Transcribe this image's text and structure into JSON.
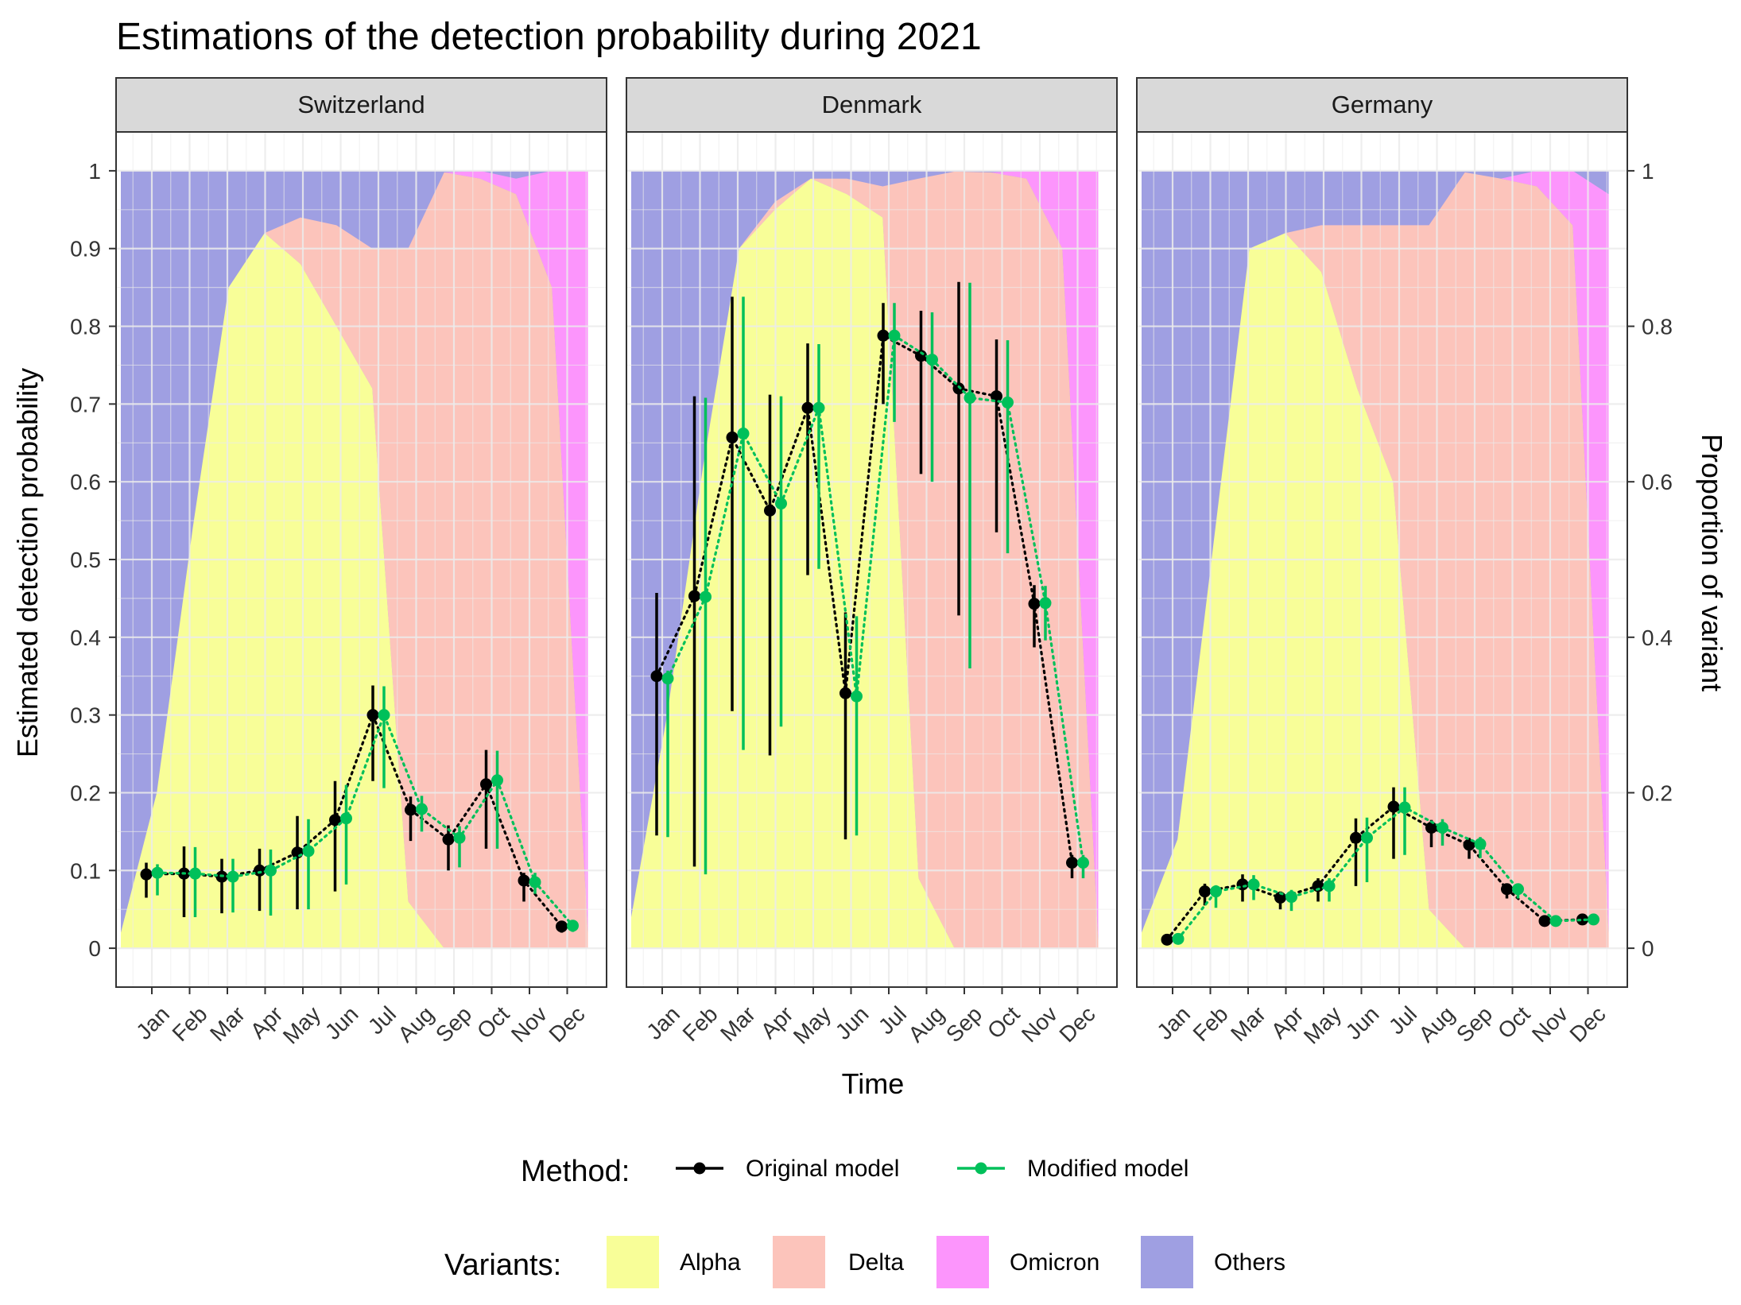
{
  "chart_data": {
    "type": "line",
    "title": "Estimations of the detection probability during 2021",
    "xlabel": "Time",
    "ylabel": "Estimated detection probability",
    "ylabel_secondary": "Proportion of variant",
    "months": [
      "Jan",
      "Feb",
      "Mar",
      "Apr",
      "May",
      "Jun",
      "Jul",
      "Aug",
      "Sep",
      "Oct",
      "Nov",
      "Dec"
    ],
    "ylim": [
      -0.05,
      1.05
    ],
    "yticks": [
      "0",
      "0.1",
      "0.2",
      "0.3",
      "0.4",
      "0.5",
      "0.6",
      "0.7",
      "0.8",
      "0.9",
      "1"
    ],
    "yticks_secondary": [
      "0",
      "0.2",
      "0.4",
      "0.6",
      "0.8",
      "1"
    ],
    "grid": true,
    "legend_method": {
      "title": "Method:",
      "entries": [
        {
          "name": "Original model",
          "color": "#000000"
        },
        {
          "name": "Modified model",
          "color": "#00c05a"
        }
      ]
    },
    "legend_variants": {
      "title": "Variants:",
      "entries": [
        {
          "name": "Alpha",
          "color": "#f8fe98"
        },
        {
          "name": "Delta",
          "color": "#fcc4bb"
        },
        {
          "name": "Omicron",
          "color": "#fc95fc"
        },
        {
          "name": "Others",
          "color": "#9f9fe2"
        }
      ]
    },
    "panels": [
      {
        "name": "Switzerland",
        "original": {
          "values": [
            0.095,
            0.096,
            0.092,
            0.1,
            0.123,
            0.165,
            0.3,
            0.178,
            0.14,
            0.211,
            0.087,
            0.028
          ],
          "lower": [
            0.065,
            0.04,
            0.045,
            0.048,
            0.05,
            0.073,
            0.215,
            0.138,
            0.1,
            0.128,
            0.06,
            0.02
          ],
          "upper": [
            0.11,
            0.131,
            0.115,
            0.128,
            0.17,
            0.215,
            0.338,
            0.195,
            0.158,
            0.255,
            0.097,
            0.034
          ]
        },
        "modified": {
          "values": [
            0.097,
            0.096,
            0.092,
            0.1,
            0.125,
            0.167,
            0.3,
            0.179,
            0.142,
            0.216,
            0.085,
            0.029
          ],
          "lower": [
            0.068,
            0.04,
            0.046,
            0.042,
            0.05,
            0.082,
            0.206,
            0.15,
            0.104,
            0.128,
            0.07,
            0.021
          ],
          "upper": [
            0.108,
            0.13,
            0.115,
            0.127,
            0.166,
            0.21,
            0.337,
            0.196,
            0.157,
            0.254,
            0.097,
            0.035
          ]
        },
        "variant_shares": {
          "alpha": [
            0.02,
            0.2,
            0.54,
            0.85,
            0.92,
            0.88,
            0.8,
            0.72,
            0.06,
            0.0,
            0.0,
            0.0,
            0.0,
            0.0
          ],
          "delta": [
            0.0,
            0.0,
            0.0,
            0.0,
            0.0,
            0.06,
            0.13,
            0.18,
            0.84,
            0.998,
            0.99,
            0.97,
            0.85,
            0.02
          ],
          "omicron": [
            0.0,
            0.0,
            0.0,
            0.0,
            0.0,
            0.0,
            0.0,
            0.0,
            0.0,
            0.0,
            0.01,
            0.02,
            0.15,
            0.98
          ]
        }
      },
      {
        "name": "Denmark",
        "original": {
          "values": [
            0.35,
            0.453,
            0.657,
            0.563,
            0.695,
            0.328,
            0.788,
            0.762,
            0.72,
            0.71,
            0.443,
            0.11
          ],
          "lower": [
            0.145,
            0.105,
            0.305,
            0.248,
            0.48,
            0.14,
            0.7,
            0.61,
            0.428,
            0.535,
            0.387,
            0.09
          ],
          "upper": [
            0.457,
            0.71,
            0.838,
            0.712,
            0.778,
            0.432,
            0.83,
            0.82,
            0.857,
            0.783,
            0.467,
            0.12
          ]
        },
        "modified": {
          "values": [
            0.347,
            0.452,
            0.662,
            0.572,
            0.695,
            0.324,
            0.788,
            0.757,
            0.708,
            0.702,
            0.444,
            0.11
          ],
          "lower": [
            0.143,
            0.095,
            0.255,
            0.285,
            0.488,
            0.145,
            0.677,
            0.6,
            0.36,
            0.508,
            0.396,
            0.09
          ],
          "upper": [
            0.357,
            0.708,
            0.838,
            0.71,
            0.777,
            0.427,
            0.83,
            0.818,
            0.856,
            0.782,
            0.466,
            0.12
          ]
        },
        "variant_shares": {
          "alpha": [
            0.04,
            0.3,
            0.62,
            0.9,
            0.95,
            0.99,
            0.97,
            0.94,
            0.09,
            0.0,
            0.0,
            0.0,
            0.0,
            0.0
          ],
          "delta": [
            0.0,
            0.0,
            0.0,
            0.0,
            0.01,
            0.0,
            0.02,
            0.04,
            0.9,
            0.999,
            0.998,
            0.99,
            0.9,
            0.01
          ],
          "omicron": [
            0.0,
            0.0,
            0.0,
            0.0,
            0.0,
            0.0,
            0.0,
            0.0,
            0.0,
            0.0,
            0.0,
            0.01,
            0.1,
            0.99
          ]
        }
      },
      {
        "name": "Germany",
        "original": {
          "values": [
            0.011,
            0.073,
            0.082,
            0.065,
            0.08,
            0.142,
            0.182,
            0.155,
            0.133,
            0.076,
            0.035,
            0.037
          ],
          "lower": [
            0.006,
            0.055,
            0.06,
            0.05,
            0.06,
            0.08,
            0.115,
            0.13,
            0.115,
            0.064,
            0.03,
            0.033
          ],
          "upper": [
            0.016,
            0.083,
            0.095,
            0.073,
            0.09,
            0.167,
            0.207,
            0.165,
            0.142,
            0.083,
            0.039,
            0.041
          ]
        },
        "modified": {
          "values": [
            0.012,
            0.073,
            0.082,
            0.066,
            0.08,
            0.142,
            0.181,
            0.155,
            0.134,
            0.076,
            0.035,
            0.037
          ],
          "lower": [
            0.007,
            0.052,
            0.062,
            0.048,
            0.06,
            0.085,
            0.12,
            0.132,
            0.116,
            0.064,
            0.03,
            0.033
          ],
          "upper": [
            0.017,
            0.081,
            0.094,
            0.075,
            0.09,
            0.168,
            0.207,
            0.166,
            0.143,
            0.083,
            0.039,
            0.041
          ]
        },
        "variant_shares": {
          "alpha": [
            0.02,
            0.14,
            0.52,
            0.9,
            0.92,
            0.87,
            0.72,
            0.6,
            0.05,
            0.0,
            0.0,
            0.0,
            0.0,
            0.0
          ],
          "delta": [
            0.0,
            0.0,
            0.0,
            0.0,
            0.0,
            0.06,
            0.21,
            0.33,
            0.88,
            0.998,
            0.99,
            0.98,
            0.93,
            0.02
          ],
          "omicron": [
            0.0,
            0.0,
            0.0,
            0.0,
            0.0,
            0.0,
            0.0,
            0.0,
            0.0,
            0.0,
            0.0,
            0.02,
            0.07,
            0.95
          ]
        }
      }
    ]
  }
}
